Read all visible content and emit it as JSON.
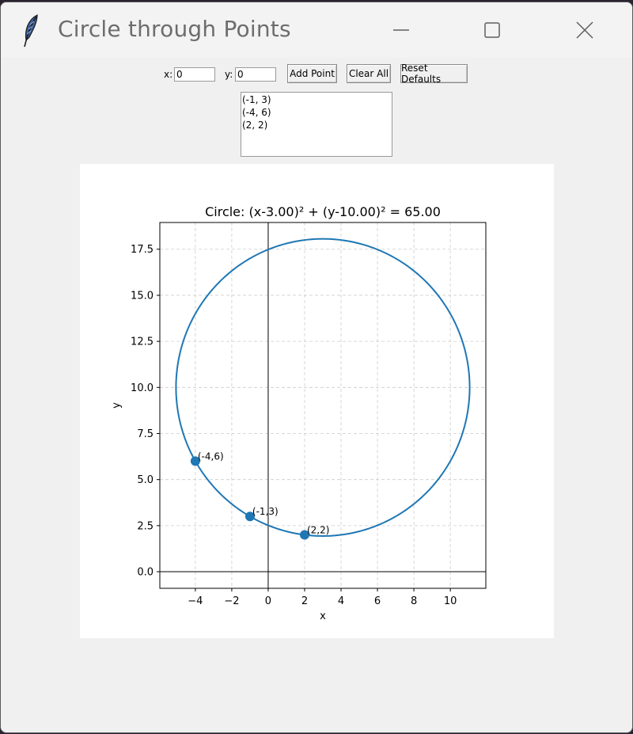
{
  "window": {
    "title": "Circle through Points"
  },
  "controls": {
    "x_label": "x:",
    "x_value": "0",
    "y_label": "y:",
    "y_value": "0",
    "add_point": "Add Point",
    "clear_all": "Clear All",
    "reset_defaults": "Reset Defaults"
  },
  "points_list": [
    "(-1, 3)",
    "(-4, 6)",
    "(2, 2)"
  ],
  "chart_data": {
    "type": "scatter",
    "title": "Circle: (x-3.00)² + (y-10.00)² = 65.00",
    "xlabel": "x",
    "ylabel": "y",
    "xlim": [
      -5.95,
      11.95
    ],
    "ylim": [
      -0.9,
      18.95
    ],
    "xticks": [
      -4,
      -2,
      0,
      2,
      4,
      6,
      8,
      10
    ],
    "xtick_labels": [
      "−4",
      "−2",
      "0",
      "2",
      "4",
      "6",
      "8",
      "10"
    ],
    "yticks": [
      0,
      2.5,
      5,
      7.5,
      10,
      12.5,
      15,
      17.5
    ],
    "ytick_labels": [
      "0.0",
      "2.5",
      "5.0",
      "7.5",
      "10.0",
      "12.5",
      "15.0",
      "17.5"
    ],
    "grid": true,
    "circle": {
      "cx": 3,
      "cy": 10,
      "r2": 65
    },
    "points": [
      {
        "x": -4,
        "y": 6,
        "label": "(-4,6)"
      },
      {
        "x": -1,
        "y": 3,
        "label": "(-1,3)"
      },
      {
        "x": 2,
        "y": 2,
        "label": "(2,2)"
      }
    ],
    "colors": {
      "series": "#1f77b4",
      "grid": "#cccccc",
      "axis": "#000000"
    }
  }
}
